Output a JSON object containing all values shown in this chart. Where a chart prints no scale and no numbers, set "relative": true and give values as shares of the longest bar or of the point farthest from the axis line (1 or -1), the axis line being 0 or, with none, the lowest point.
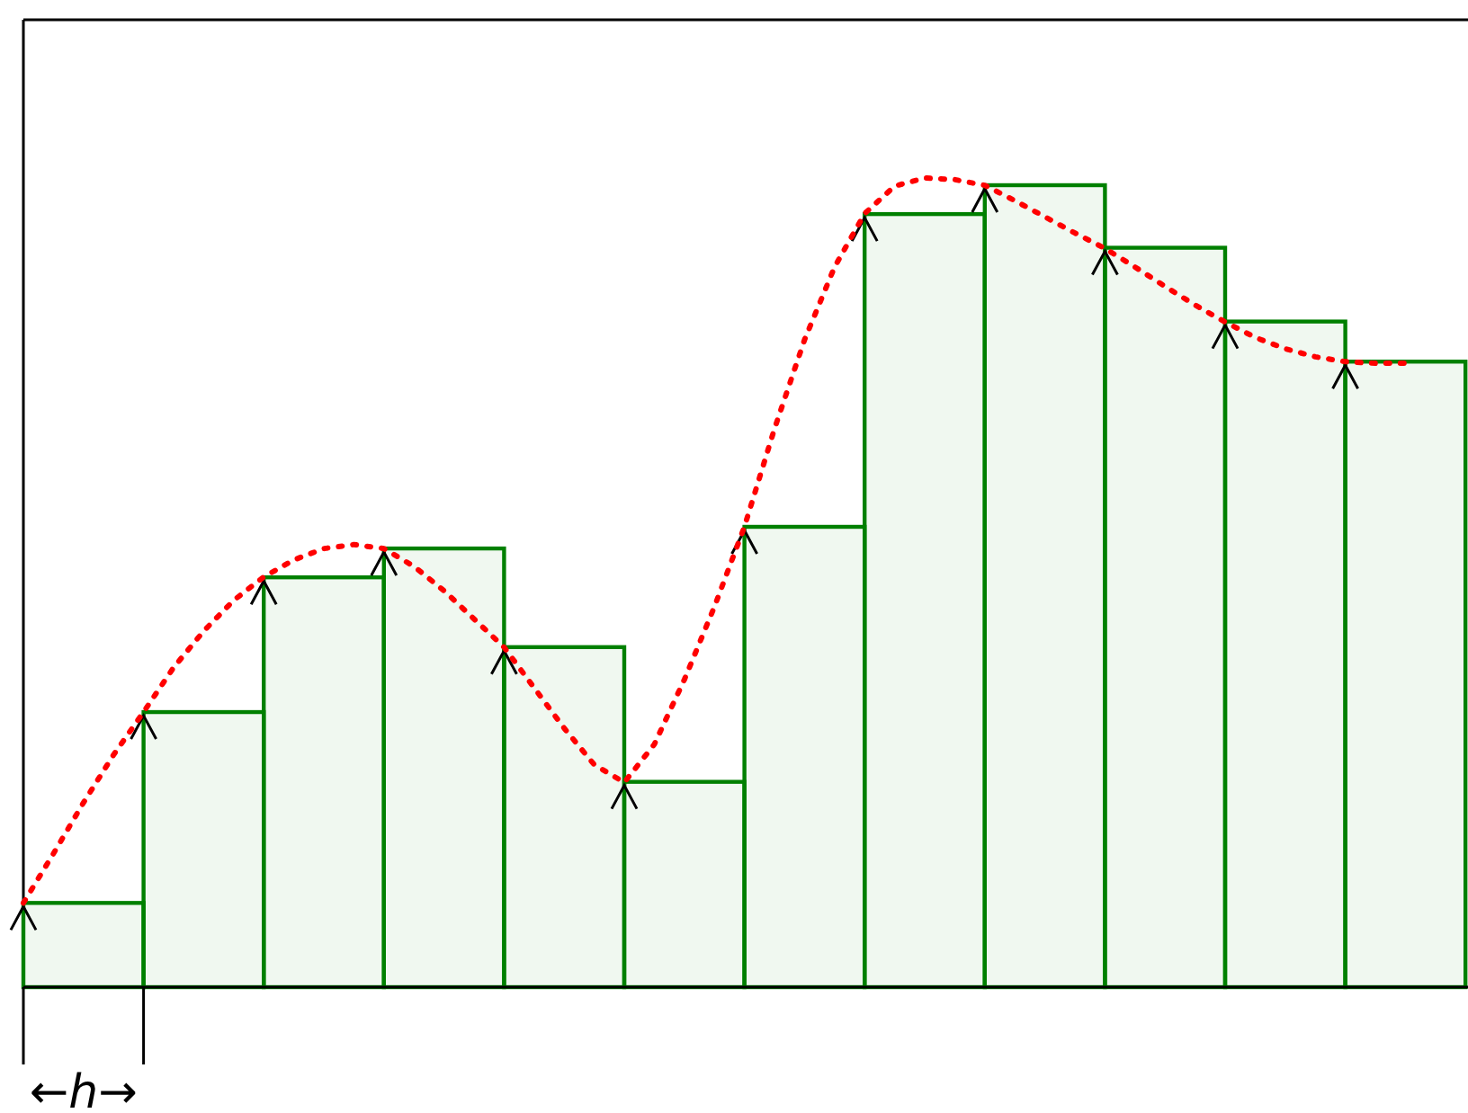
{
  "chart_data": [
    {
      "type": "bar",
      "relative": true,
      "color": "#008000",
      "categories": [
        null,
        null,
        null,
        null,
        null,
        null,
        null,
        null,
        null,
        null,
        null,
        null
      ],
      "values": [
        0.105,
        0.343,
        0.511,
        0.547,
        0.424,
        0.256,
        0.574,
        0.964,
        1,
        0.922,
        0.83,
        0.78
      ],
      "annotations": [
        "←h→"
      ]
    },
    {
      "type": "line",
      "relative": true,
      "color": "#ff0000",
      "line_style": "dotted",
      "categories": [
        null,
        null,
        null,
        null,
        null,
        null,
        null,
        null,
        null,
        null,
        null,
        null,
        null,
        null,
        null,
        null,
        null,
        null,
        null,
        null,
        null,
        null,
        null,
        null,
        null,
        null,
        null,
        null,
        null,
        null,
        null,
        null,
        null,
        null,
        null,
        null,
        null,
        null,
        null,
        null,
        null,
        null,
        null,
        null,
        null,
        null,
        null
      ],
      "values": [
        0.104,
        0.165,
        0.228,
        0.287,
        0.34,
        0.395,
        0.44,
        0.478,
        0.507,
        0.528,
        0.542,
        0.547,
        0.542,
        0.52,
        0.49,
        0.455,
        0.42,
        0.37,
        0.32,
        0.275,
        0.253,
        0.3,
        0.38,
        0.47,
        0.569,
        0.69,
        0.8,
        0.89,
        0.956,
        0.99,
        1.0,
        0.998,
        0.991,
        0.972,
        0.952,
        0.932,
        0.913,
        0.89,
        0.866,
        0.843,
        0.822,
        0.803,
        0.789,
        0.779,
        0.773,
        0.771,
        0.771
      ]
    }
  ]
}
